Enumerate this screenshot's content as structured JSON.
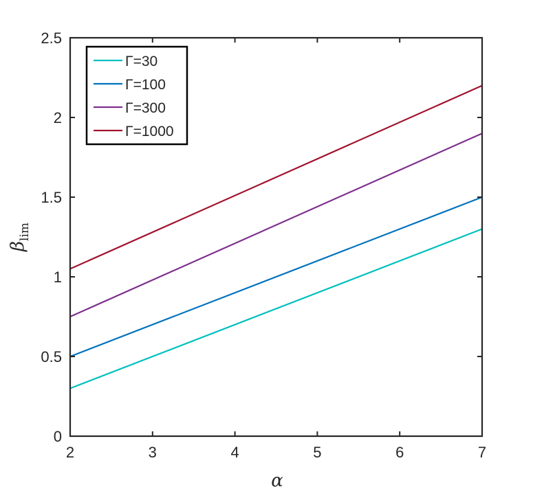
{
  "chart_data": {
    "type": "line",
    "xlabel": "α",
    "ylabel": "β",
    "ylabel_subscript": "lim",
    "xlim": [
      2,
      7
    ],
    "ylim": [
      0,
      2.5
    ],
    "xticks": [
      "2",
      "3",
      "4",
      "5",
      "6",
      "7"
    ],
    "yticks": [
      "0",
      "0.5",
      "1",
      "1.5",
      "2",
      "2.5"
    ],
    "grid": false,
    "legend_position": "top-left",
    "series": [
      {
        "name": "Γ=30",
        "color": "#00bfbf",
        "x": [
          2,
          7
        ],
        "y": [
          0.3,
          1.3
        ]
      },
      {
        "name": "Γ=100",
        "color": "#0072bd",
        "x": [
          2,
          7
        ],
        "y": [
          0.5,
          1.5
        ]
      },
      {
        "name": "Γ=300",
        "color": "#7e2f8e",
        "x": [
          2,
          7
        ],
        "y": [
          0.75,
          1.9
        ]
      },
      {
        "name": "Γ=1000",
        "color": "#a2142f",
        "x": [
          2,
          7
        ],
        "y": [
          1.05,
          2.2
        ]
      }
    ]
  }
}
